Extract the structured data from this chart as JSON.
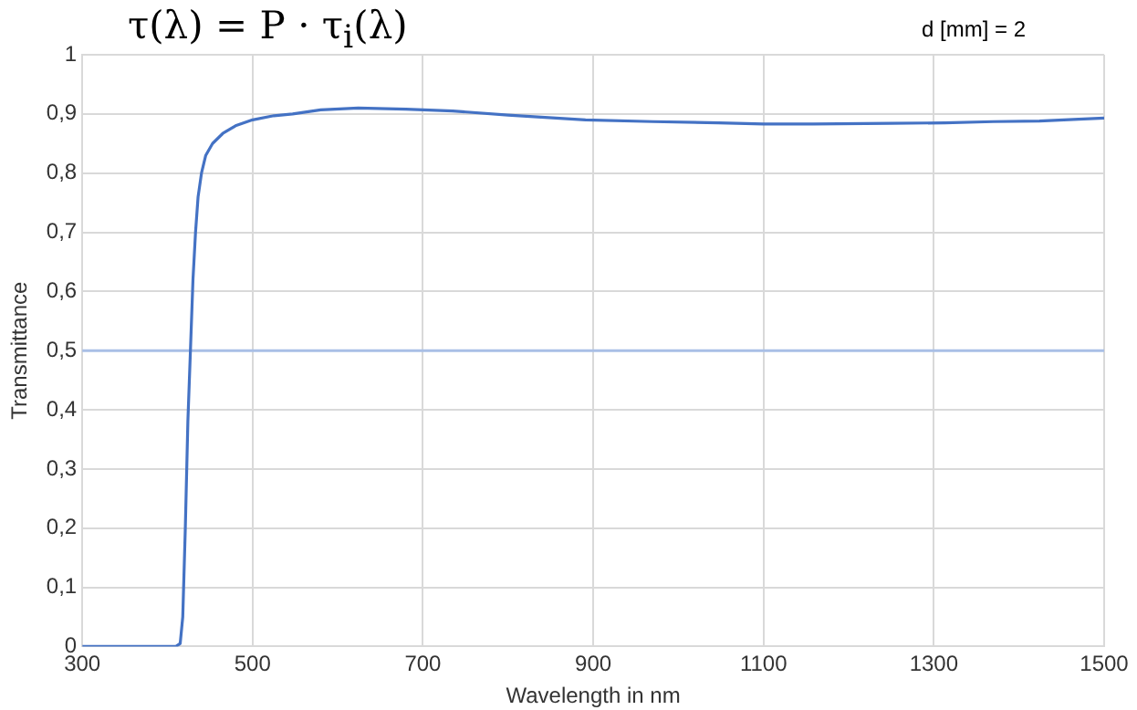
{
  "chart_data": {
    "type": "line",
    "title": "τ(λ) = P · τ$_{i}$(λ)",
    "xlabel": "Wavelength in nm",
    "ylabel": "Transmittance",
    "annotations": [
      "d [mm]  = 2"
    ],
    "series": [
      {
        "color": "#4472c4",
        "x": [
          300,
          350,
          400,
          410,
          415,
          418,
          421,
          424,
          427,
          430,
          433,
          436,
          440,
          445,
          453,
          465,
          480,
          500,
          525,
          547,
          580,
          624,
          680,
          735,
          800,
          891,
          970,
          1047,
          1100,
          1158,
          1250,
          1313,
          1370,
          1424,
          1470,
          1500
        ],
        "values": [
          0,
          0,
          0,
          0,
          0.005,
          0.05,
          0.2,
          0.38,
          0.5,
          0.62,
          0.7,
          0.76,
          0.8,
          0.83,
          0.85,
          0.867,
          0.88,
          0.89,
          0.897,
          0.9,
          0.907,
          0.91,
          0.908,
          0.905,
          0.898,
          0.89,
          0.887,
          0.885,
          0.883,
          0.883,
          0.884,
          0.885,
          0.887,
          0.888,
          0.891,
          0.893
        ]
      }
    ],
    "xlim": [
      300,
      1500
    ],
    "xticks": [
      300,
      500,
      700,
      900,
      1100,
      1300,
      1500
    ],
    "ylim": [
      0,
      1
    ],
    "yticks": [
      0,
      {
        "value": 0.1,
        "label": "0,1"
      },
      {
        "value": 0.2,
        "label": "0,2"
      },
      {
        "value": 0.3,
        "label": "0,3"
      },
      {
        "value": 0.4,
        "label": "0,4"
      },
      {
        "value": 0.5,
        "label": "0,5"
      },
      {
        "value": 0.6,
        "label": "0,6"
      },
      {
        "value": 0.7,
        "label": "0,7"
      },
      {
        "value": 0.8,
        "label": "0,8"
      },
      {
        "value": 0.9,
        "label": "0,9"
      },
      1
    ],
    "ref_lines": [
      {
        "axis": "y",
        "value": 0.5,
        "color": "#a9bfe6"
      }
    ],
    "grid": true,
    "legend": false,
    "marker": "none",
    "line_style": "solid"
  }
}
